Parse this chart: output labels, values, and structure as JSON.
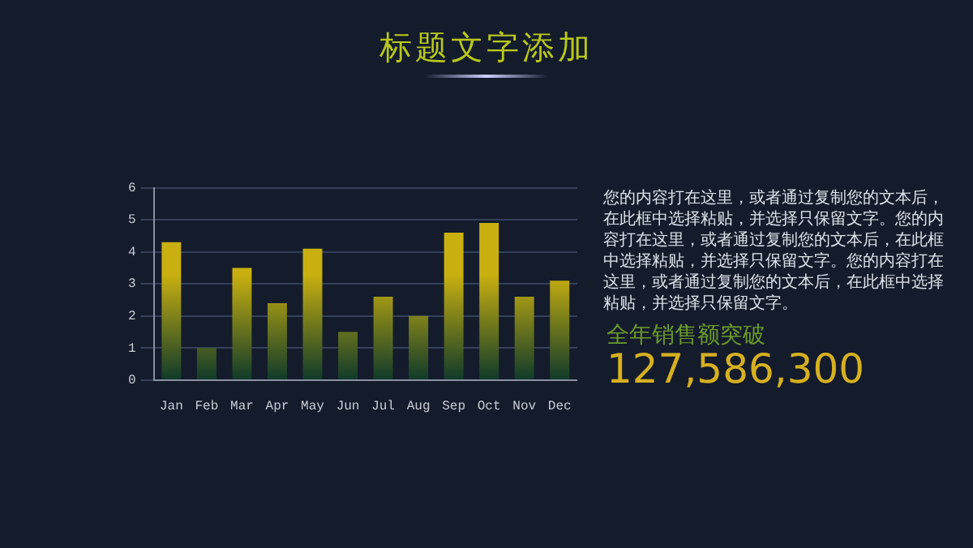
{
  "chart_data": {
    "type": "bar",
    "title": "标题文字添加",
    "categories": [
      "Jan",
      "Feb",
      "Mar",
      "Apr",
      "May",
      "Jun",
      "Jul",
      "Aug",
      "Sep",
      "Oct",
      "Nov",
      "Dec"
    ],
    "values": [
      4.3,
      1.0,
      3.5,
      2.4,
      4.1,
      1.5,
      2.6,
      2.0,
      4.6,
      4.9,
      2.6,
      3.1
    ],
    "color": "#c9b010",
    "ylim": [
      0,
      6
    ],
    "yticks": [
      0,
      1,
      2,
      3,
      4,
      5,
      6
    ],
    "grid": "y",
    "legend": false,
    "annotations": [
      "您的内容打在这里，或者通过复制您的文本后，在此框中选择粘贴，并选择只保留文字。您的内容打在这里，或者通过复制您的文本后，在此框中选择粘贴，并选择只保留文字。您的内容打在这里，或者通过复制您的文本后，在此框中选择粘贴，并选择只保留文字。",
      "全年销售额突破",
      "127,586,300"
    ]
  }
}
